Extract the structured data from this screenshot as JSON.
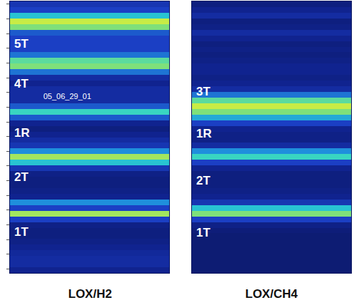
{
  "chart_data": [
    {
      "type": "heatmap",
      "title": "LOX/H2",
      "tick_labels": false,
      "xlim": [
        -0.5,
        0.5
      ],
      "ylim": [
        47.5,
        -0.5
      ],
      "zlim": [
        0,
        1
      ],
      "cells": [
        0.25,
        0.3,
        0.55,
        0.8,
        0.7,
        0.35,
        0.3,
        0.3,
        0.3,
        0.4,
        0.65,
        0.7,
        0.4,
        0.2,
        0.15,
        0.2,
        0.2,
        0.2,
        0.35,
        0.6,
        0.35,
        0.15,
        0.1,
        0.15,
        0.2,
        0.25,
        0.45,
        0.75,
        0.55,
        0.25,
        0.12,
        0.1,
        0.1,
        0.12,
        0.15,
        0.45,
        0.3,
        0.75,
        0.3,
        0.12,
        0.1,
        0.1,
        0.12,
        0.15,
        0.18,
        0.2,
        0.2,
        0.15
      ],
      "labels": [
        {
          "text": "5T",
          "row": 7
        },
        {
          "text": "4T",
          "row": 14
        },
        {
          "text": "1R",
          "row": 22.7
        },
        {
          "text": "2T",
          "row": 30.6
        },
        {
          "text": "1T",
          "row": 40.2
        }
      ],
      "annotations": [
        {
          "text": "05_06_29_01",
          "row": 16.2
        }
      ]
    },
    {
      "type": "heatmap",
      "title": "LOX/CH4",
      "tick_labels": false,
      "xlim": [
        -0.5,
        0.5
      ],
      "ylim": [
        47.5,
        -0.5
      ],
      "zlim": [
        0,
        1
      ],
      "cells": [
        0.1,
        0.15,
        0.2,
        0.1,
        0.12,
        0.2,
        0.15,
        0.1,
        0.12,
        0.1,
        0.12,
        0.15,
        0.15,
        0.12,
        0.15,
        0.2,
        0.4,
        0.65,
        0.8,
        0.7,
        0.5,
        0.3,
        0.15,
        0.12,
        0.12,
        0.2,
        0.45,
        0.6,
        0.3,
        0.15,
        0.1,
        0.1,
        0.1,
        0.12,
        0.15,
        0.25,
        0.55,
        0.7,
        0.3,
        0.12,
        0.08,
        0.06,
        0.06,
        0.06,
        0.06,
        0.06,
        0.06,
        0.06
      ],
      "labels": [
        {
          "text": "3T",
          "row": 15.4
        },
        {
          "text": "1R",
          "row": 22.9
        },
        {
          "text": "2T",
          "row": 31.2
        },
        {
          "text": "1T",
          "row": 40.4
        }
      ]
    }
  ]
}
